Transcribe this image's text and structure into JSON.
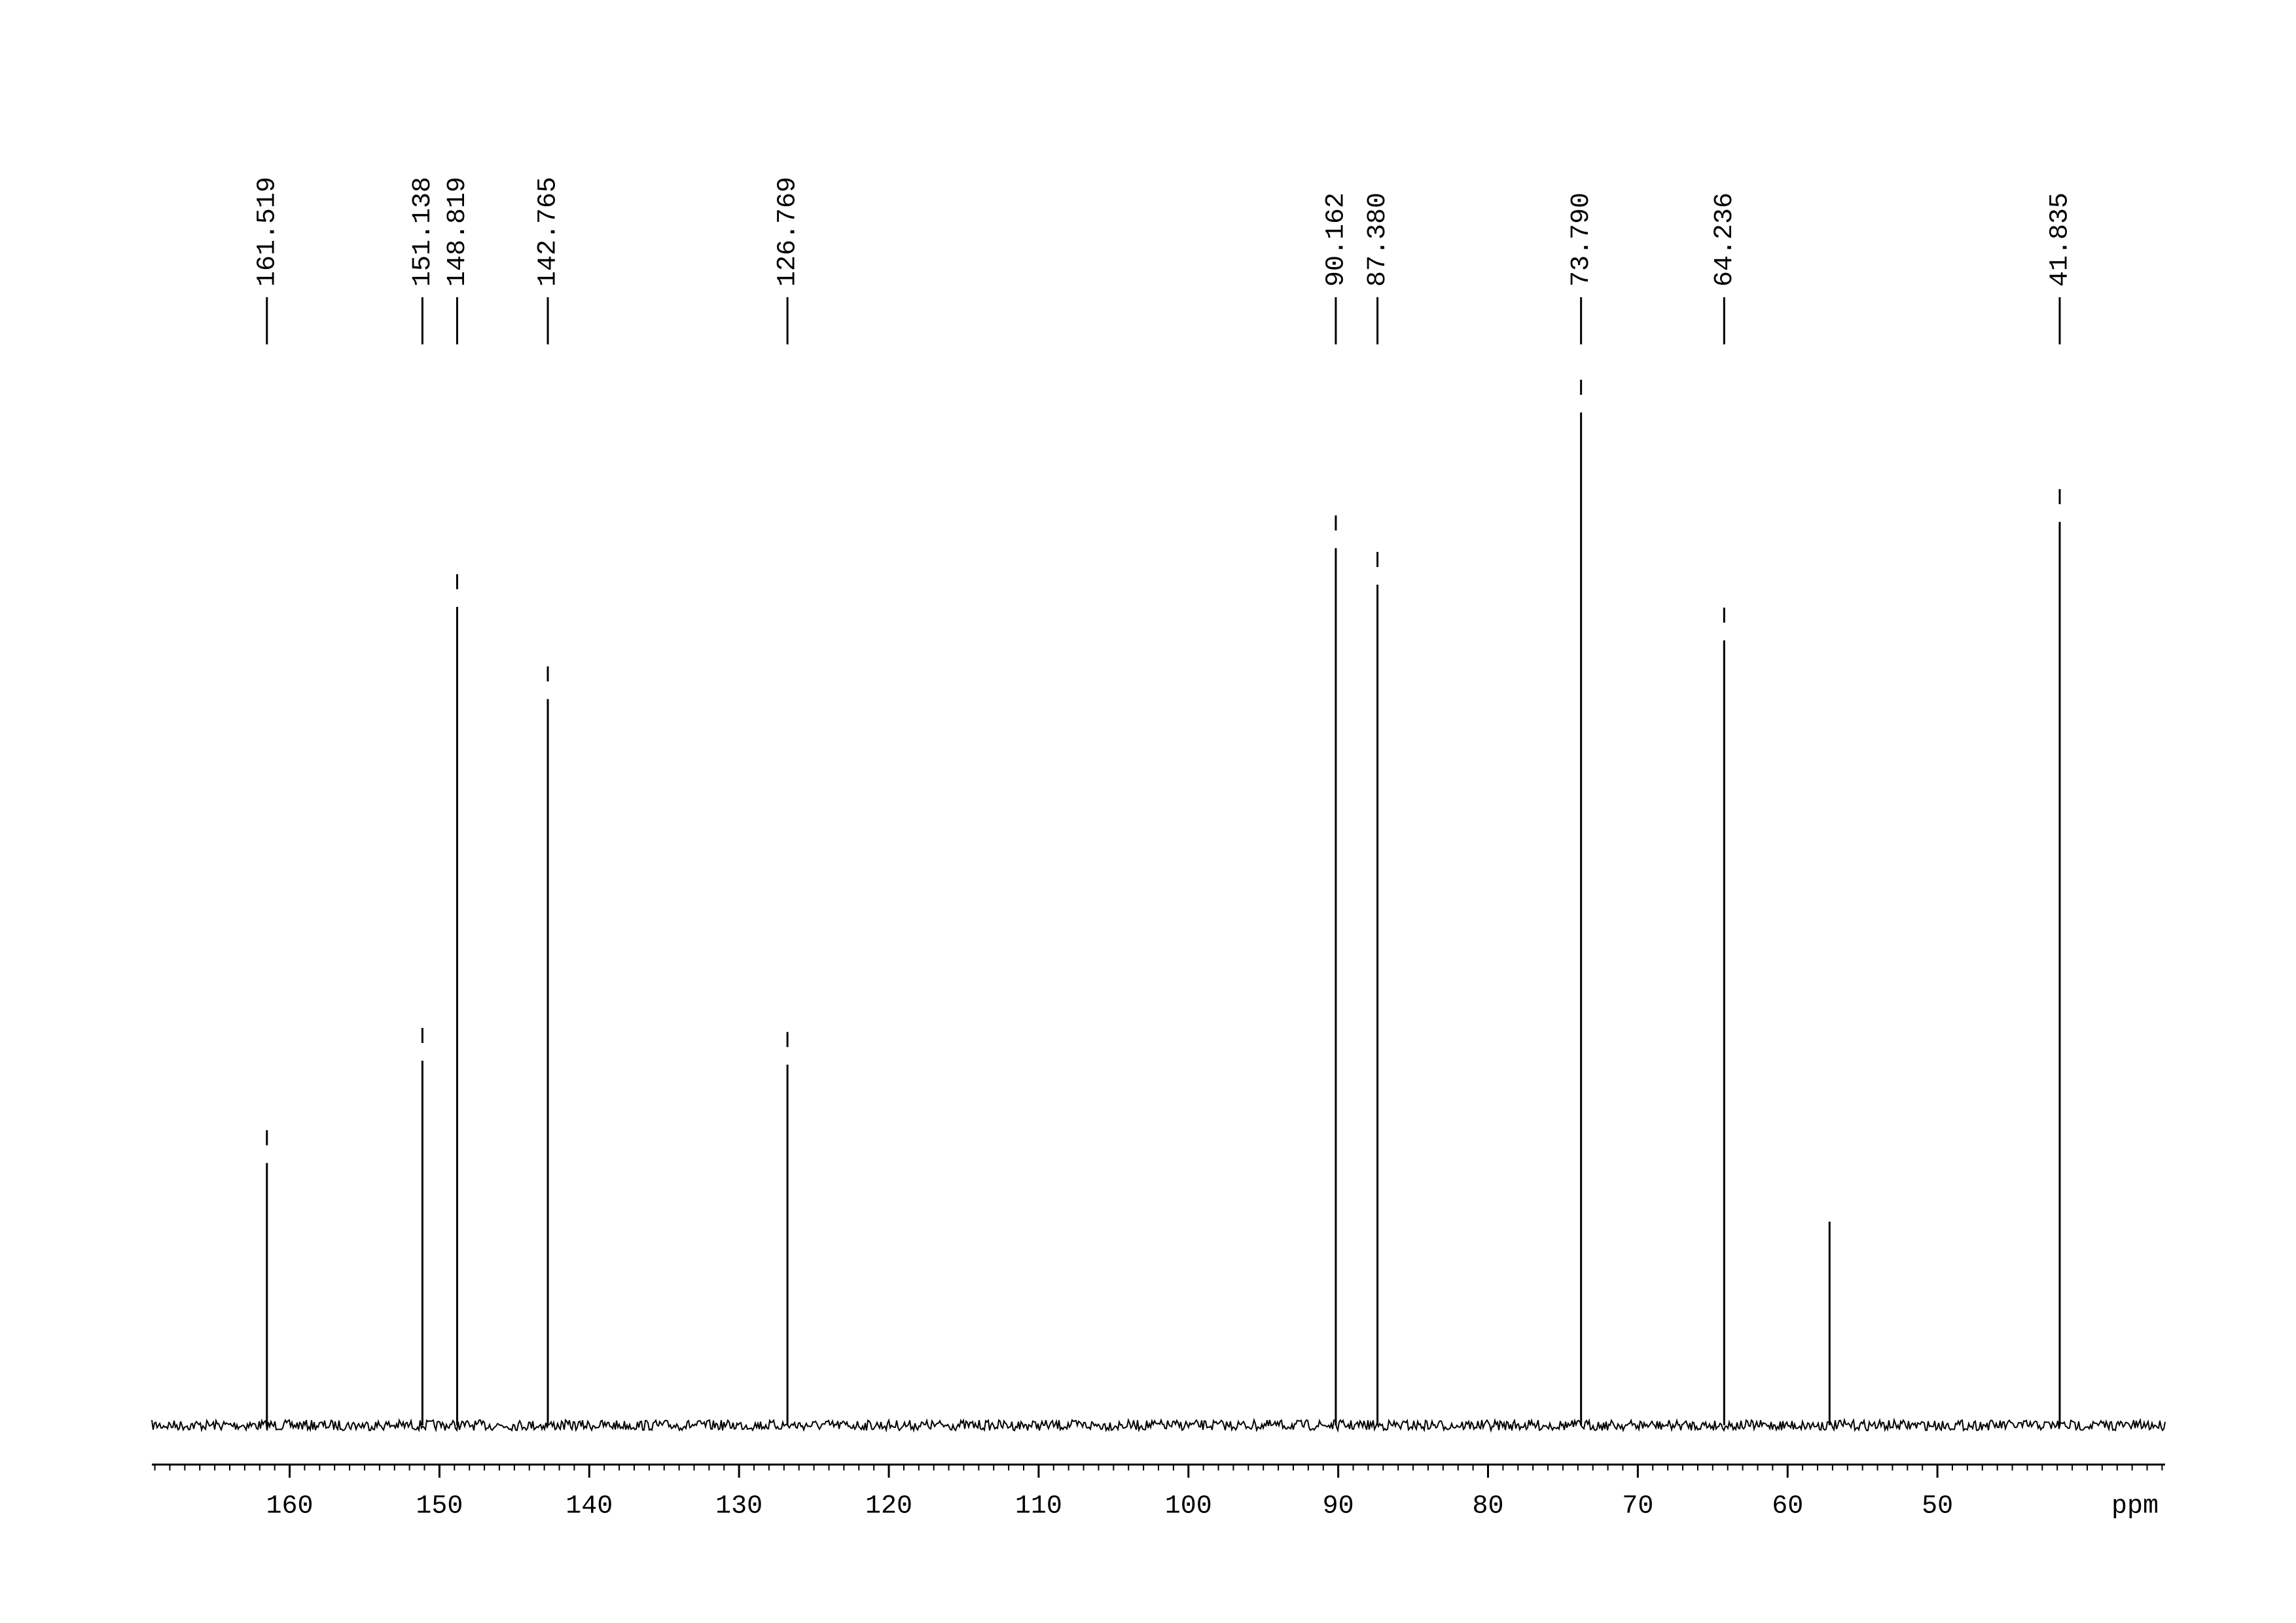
{
  "chart_data": {
    "type": "spectrum",
    "x_label": "ppm",
    "x": [
      161.519,
      151.138,
      148.819,
      142.765,
      126.769,
      90.162,
      87.38,
      73.79,
      64.236,
      57.2,
      41.835
    ],
    "x_labels": [
      "161.519",
      "151.138",
      "148.819",
      "142.765",
      "126.769",
      "90.162",
      "87.380",
      "73.790",
      "64.236",
      null,
      "41.835"
    ],
    "values": [
      25.9,
      36.0,
      80.8,
      71.7,
      35.6,
      86.6,
      83.0,
      100,
      77.5,
      20.1,
      89.2
    ],
    "color": "#000000",
    "xlim": [
      169.2,
      34.8
    ],
    "ylim": [
      0,
      100
    ],
    "xticks": [
      160,
      150,
      140,
      130,
      120,
      110,
      100,
      90,
      80,
      70,
      60,
      50
    ]
  }
}
